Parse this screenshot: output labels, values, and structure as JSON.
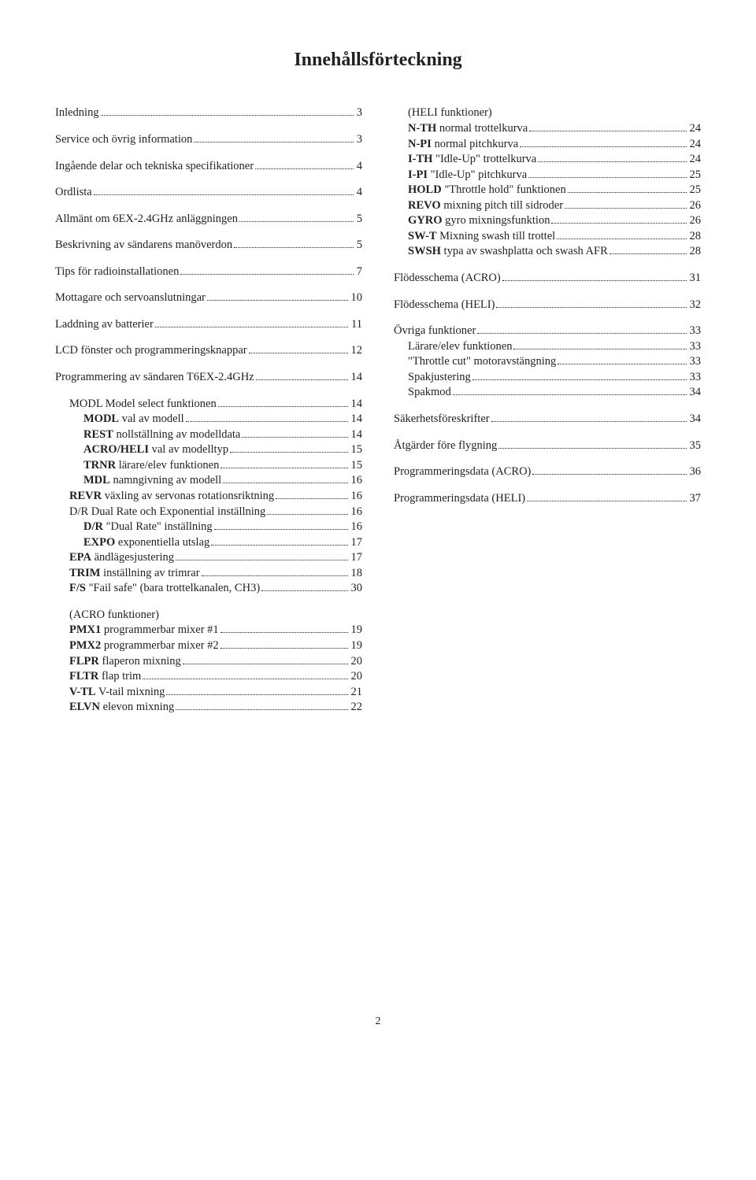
{
  "title": "Innehållsförteckning",
  "page_number": "2",
  "colors": {
    "text": "#231f20",
    "bg": "#ffffff"
  },
  "left": [
    {
      "t": "Inledning",
      "p": "3",
      "i": 0,
      "sp": 1
    },
    {
      "t": "Service och övrig information",
      "p": "3",
      "i": 0,
      "sp": 1
    },
    {
      "t": "Ingående delar och tekniska specifikationer",
      "p": "4",
      "i": 0,
      "sp": 1
    },
    {
      "t": "Ordlista",
      "p": "4",
      "i": 0,
      "sp": 1
    },
    {
      "t": "Allmänt om 6EX-2.4GHz anläggningen",
      "p": "5",
      "i": 0,
      "sp": 1
    },
    {
      "t": "Beskrivning av sändarens manöverdon",
      "p": "5",
      "i": 0,
      "sp": 1
    },
    {
      "t": "Tips för radioinstallationen",
      "p": "7",
      "i": 0,
      "sp": 1
    },
    {
      "t": "Mottagare och servoanslutningar",
      "p": "10",
      "i": 0,
      "sp": 1
    },
    {
      "t": "Laddning av batterier",
      "p": "11",
      "i": 0,
      "sp": 1
    },
    {
      "t": "LCD fönster och programmeringsknappar",
      "p": "12",
      "i": 0,
      "sp": 1
    },
    {
      "t": "Programmering av sändaren T6EX-2.4GHz",
      "p": "14",
      "i": 0,
      "sp": 1
    },
    {
      "t": "MODL Model select funktionen",
      "p": "14",
      "i": 1
    },
    {
      "b": "MODL",
      "t": " val av modell",
      "p": "14",
      "i": 2
    },
    {
      "b": "REST",
      "t": " nollställning av modelldata",
      "p": "14",
      "i": 2
    },
    {
      "b": "ACRO/HELI",
      "t": " val av modelltyp",
      "p": "15",
      "i": 2
    },
    {
      "b": "TRNR",
      "t": " lärare/elev funktionen",
      "p": "15",
      "i": 2
    },
    {
      "b": "MDL",
      "t": " namngivning av modell",
      "p": "16",
      "i": 2
    },
    {
      "b": "REVR",
      "t": " växling av servonas rotationsriktning",
      "p": "16",
      "i": 1
    },
    {
      "t": "D/R Dual Rate och Exponential inställning",
      "p": " 16",
      "i": 1
    },
    {
      "b": "D/R",
      "t": " \"Dual Rate\" inställning",
      "p": "16",
      "i": 2
    },
    {
      "b": "EXPO",
      "t": " exponentiella utslag",
      "p": "17",
      "i": 2
    },
    {
      "b": "EPA",
      "t": " ändlägesjustering",
      "p": "17",
      "i": 1
    },
    {
      "b": "TRIM",
      "t": " inställning av trimrar",
      "p": "18",
      "i": 1
    },
    {
      "b": "F/S",
      "t": " \"Fail safe\" (bara trottelkanalen, CH3)",
      "p": " 30",
      "i": 1,
      "sp": 1
    },
    {
      "t": "(ACRO  funktioner)",
      "i": 1,
      "nobar": 1
    },
    {
      "b": "PMX1",
      "t": " programmerbar mixer #1",
      "p": "19",
      "i": 1
    },
    {
      "b": "PMX2",
      "t": " programmerbar mixer #2",
      "p": "19",
      "i": 1
    },
    {
      "b": "FLPR",
      "t": " flaperon mixning",
      "p": " 20",
      "i": 1
    },
    {
      "b": "FLTR",
      "t": " flap trim",
      "p": " 20",
      "i": 1
    },
    {
      "b": "V-TL",
      "t": " V-tail mixning",
      "p": "21",
      "i": 1
    },
    {
      "b": "ELVN",
      "t": " elevon mixning",
      "p": "22",
      "i": 1
    }
  ],
  "right": [
    {
      "t": "(HELI funktioner)",
      "i": 1,
      "nobar": 1
    },
    {
      "b": "N-TH",
      "t": " normal trottelkurva",
      "p": " 24",
      "i": 1
    },
    {
      "b": "N-PI",
      "t": " normal pitchkurva",
      "p": " 24",
      "i": 1
    },
    {
      "b": "I-TH",
      "t": " \"Idle-Up\" trottelkurva",
      "p": " 24",
      "i": 1
    },
    {
      "b": "I-PI",
      "t": " \"Idle-Up\" pitchkurva",
      "p": "25",
      "i": 1
    },
    {
      "b": "HOLD",
      "t": " \"Throttle hold\" funktionen",
      "p": "25",
      "i": 1
    },
    {
      "b": "REVO",
      "t": " mixning pitch till sidroder",
      "p": " 26",
      "i": 1
    },
    {
      "b": "GYRO",
      "t": " gyro mixningsfunktion",
      "p": " 26",
      "i": 1
    },
    {
      "b": "SW-T",
      "t": " Mixning swash till trottel",
      "p": " 28",
      "i": 1
    },
    {
      "b": "SWSH",
      "t": " typa av swashplatta och swash AFR",
      "p": " 28",
      "i": 1,
      "sp": 1
    },
    {
      "t": "Flödesschema (ACRO)",
      "p": "31",
      "i": 0,
      "sp": 1
    },
    {
      "t": "Flödesschema (HELI)",
      "p": "32",
      "i": 0,
      "sp": 1
    },
    {
      "t": "Övriga funktioner",
      "p": "33",
      "i": 0
    },
    {
      "t": "Lärare/elev funktionen",
      "p": "33",
      "i": 1
    },
    {
      "t": "\"Throttle cut\" motoravstängning",
      "p": "33",
      "i": 1
    },
    {
      "t": "Spakjustering",
      "p": "33",
      "i": 1
    },
    {
      "t": "Spakmod",
      "p": " 34",
      "i": 1,
      "sp": 1
    },
    {
      "t": "Säkerhetsföreskrifter",
      "p": "34",
      "i": 0,
      "sp": 1
    },
    {
      "t": "Åtgärder före flygning",
      "p": "35",
      "i": 0,
      "sp": 1
    },
    {
      "t": "Programmeringsdata (ACRO)",
      "p": "36",
      "i": 0,
      "sp": 1
    },
    {
      "t": "Programmeringsdata (HELI)",
      "p": "37",
      "i": 0,
      "sp": 1
    }
  ]
}
